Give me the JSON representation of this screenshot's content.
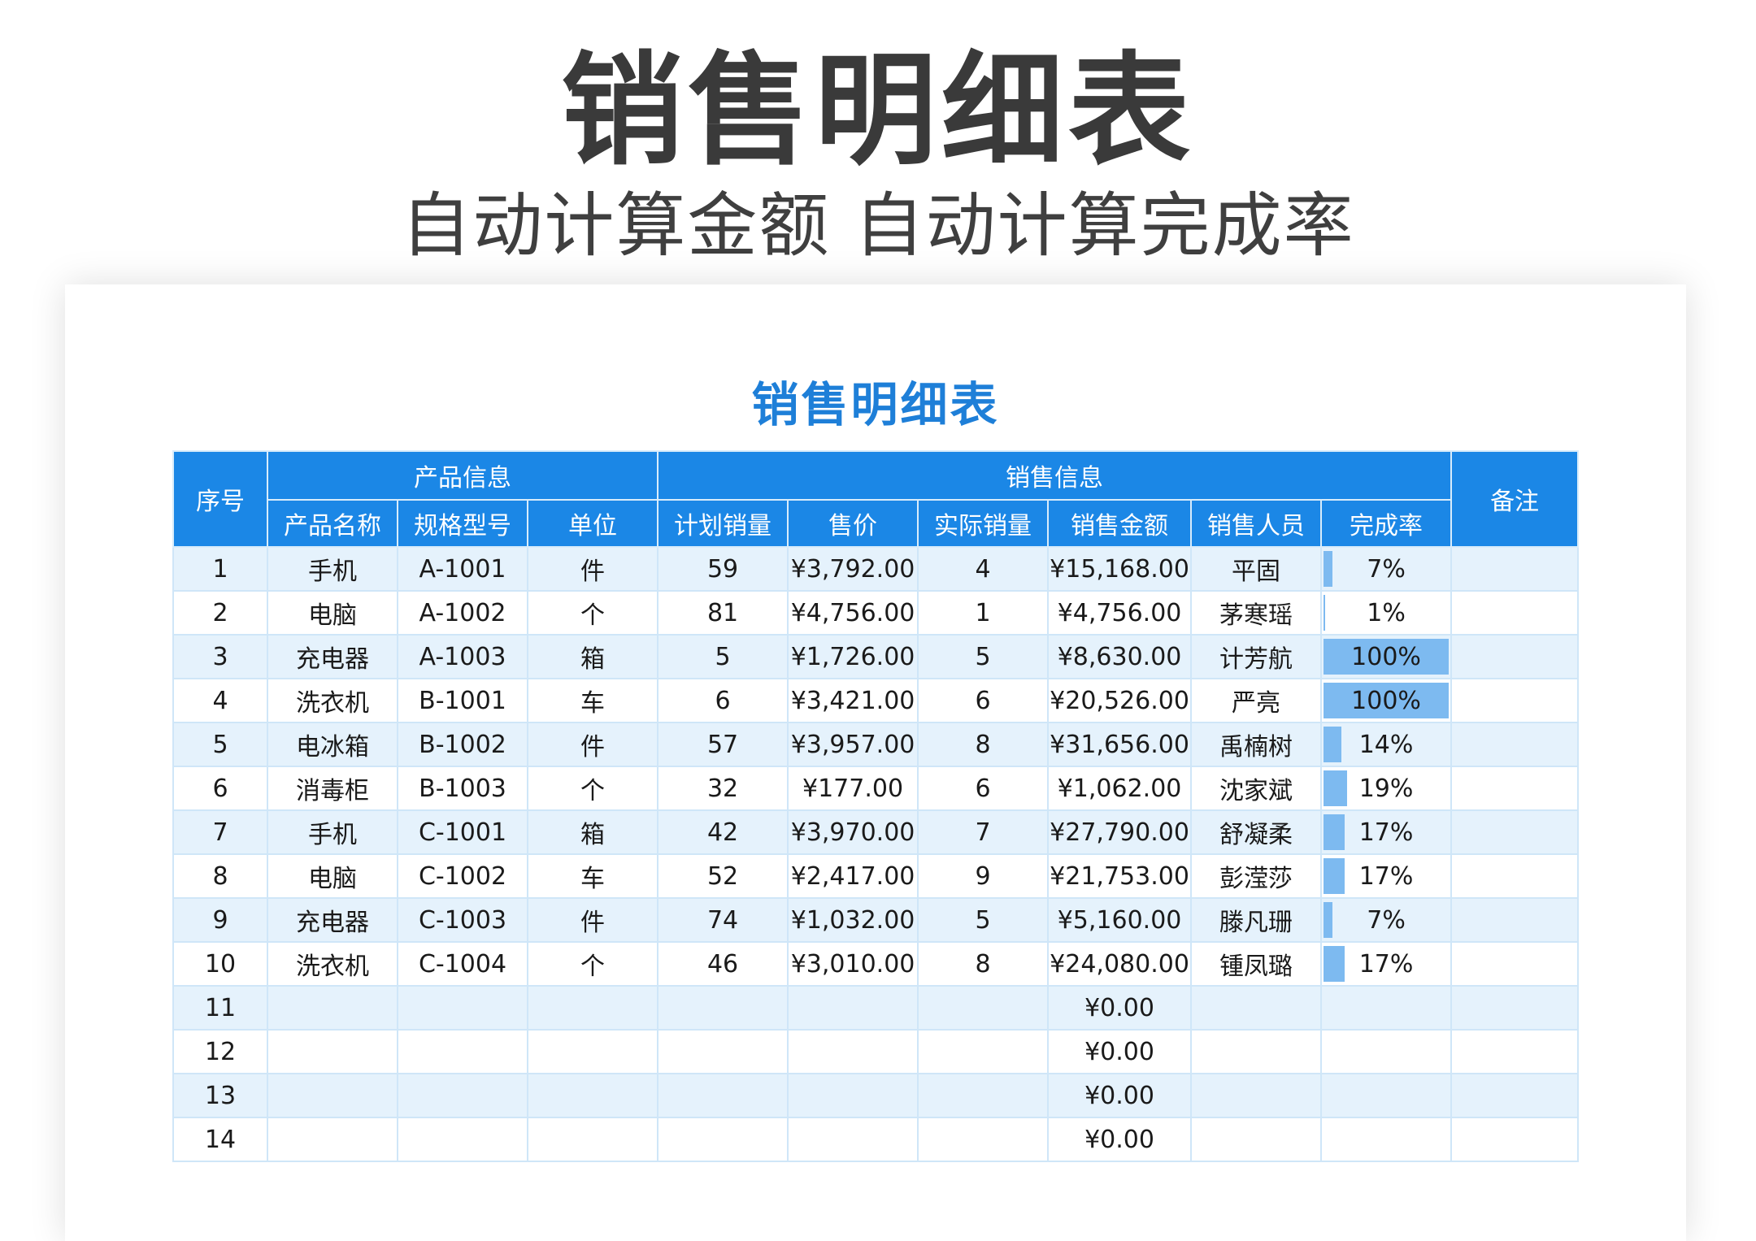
{
  "hero": {
    "title": "销售明细表",
    "subtitle": "自动计算金额 自动计算完成率"
  },
  "sheet": {
    "title": "销售明细表",
    "header": {
      "serial": "序号",
      "product_group": "产品信息",
      "sales_group": "销售信息",
      "remark": "备注",
      "columns": [
        "产品名称",
        "规格型号",
        "单位",
        "计划销量",
        "售价",
        "实际销量",
        "销售金额",
        "销售人员",
        "完成率"
      ]
    },
    "rows": [
      {
        "no": "1",
        "name": "手机",
        "model": "A-1001",
        "unit": "件",
        "plan": "59",
        "price": "¥3,792.00",
        "actual": "4",
        "amount": "¥15,168.00",
        "person": "平固",
        "rate_text": "7%",
        "rate": 0.07,
        "remark": ""
      },
      {
        "no": "2",
        "name": "电脑",
        "model": "A-1002",
        "unit": "个",
        "plan": "81",
        "price": "¥4,756.00",
        "actual": "1",
        "amount": "¥4,756.00",
        "person": "茅寒瑶",
        "rate_text": "1%",
        "rate": 0.01,
        "remark": ""
      },
      {
        "no": "3",
        "name": "充电器",
        "model": "A-1003",
        "unit": "箱",
        "plan": "5",
        "price": "¥1,726.00",
        "actual": "5",
        "amount": "¥8,630.00",
        "person": "计芳航",
        "rate_text": "100%",
        "rate": 1.0,
        "remark": ""
      },
      {
        "no": "4",
        "name": "洗衣机",
        "model": "B-1001",
        "unit": "车",
        "plan": "6",
        "price": "¥3,421.00",
        "actual": "6",
        "amount": "¥20,526.00",
        "person": "严亮",
        "rate_text": "100%",
        "rate": 1.0,
        "remark": ""
      },
      {
        "no": "5",
        "name": "电冰箱",
        "model": "B-1002",
        "unit": "件",
        "plan": "57",
        "price": "¥3,957.00",
        "actual": "8",
        "amount": "¥31,656.00",
        "person": "禹楠树",
        "rate_text": "14%",
        "rate": 0.14,
        "remark": ""
      },
      {
        "no": "6",
        "name": "消毒柜",
        "model": "B-1003",
        "unit": "个",
        "plan": "32",
        "price": "¥177.00",
        "actual": "6",
        "amount": "¥1,062.00",
        "person": "沈家斌",
        "rate_text": "19%",
        "rate": 0.19,
        "remark": ""
      },
      {
        "no": "7",
        "name": "手机",
        "model": "C-1001",
        "unit": "箱",
        "plan": "42",
        "price": "¥3,970.00",
        "actual": "7",
        "amount": "¥27,790.00",
        "person": "舒凝柔",
        "rate_text": "17%",
        "rate": 0.17,
        "remark": ""
      },
      {
        "no": "8",
        "name": "电脑",
        "model": "C-1002",
        "unit": "车",
        "plan": "52",
        "price": "¥2,417.00",
        "actual": "9",
        "amount": "¥21,753.00",
        "person": "彭滢莎",
        "rate_text": "17%",
        "rate": 0.17,
        "remark": ""
      },
      {
        "no": "9",
        "name": "充电器",
        "model": "C-1003",
        "unit": "件",
        "plan": "74",
        "price": "¥1,032.00",
        "actual": "5",
        "amount": "¥5,160.00",
        "person": "滕凡珊",
        "rate_text": "7%",
        "rate": 0.07,
        "remark": ""
      },
      {
        "no": "10",
        "name": "洗衣机",
        "model": "C-1004",
        "unit": "个",
        "plan": "46",
        "price": "¥3,010.00",
        "actual": "8",
        "amount": "¥24,080.00",
        "person": "锺凤璐",
        "rate_text": "17%",
        "rate": 0.17,
        "remark": ""
      },
      {
        "no": "11",
        "name": "",
        "model": "",
        "unit": "",
        "plan": "",
        "price": "",
        "actual": "",
        "amount": "¥0.00",
        "person": "",
        "rate_text": "",
        "rate": 0,
        "remark": ""
      },
      {
        "no": "12",
        "name": "",
        "model": "",
        "unit": "",
        "plan": "",
        "price": "",
        "actual": "",
        "amount": "¥0.00",
        "person": "",
        "rate_text": "",
        "rate": 0,
        "remark": ""
      },
      {
        "no": "13",
        "name": "",
        "model": "",
        "unit": "",
        "plan": "",
        "price": "",
        "actual": "",
        "amount": "¥0.00",
        "person": "",
        "rate_text": "",
        "rate": 0,
        "remark": ""
      },
      {
        "no": "14",
        "name": "",
        "model": "",
        "unit": "",
        "plan": "",
        "price": "",
        "actual": "",
        "amount": "¥0.00",
        "person": "",
        "rate_text": "",
        "rate": 0,
        "remark": ""
      }
    ]
  },
  "colors": {
    "header_bg": "#1b87e6",
    "title_blue": "#1e7fd8",
    "row_alt": "#e5f2fc",
    "rate_bar": "#7dbaf0"
  }
}
